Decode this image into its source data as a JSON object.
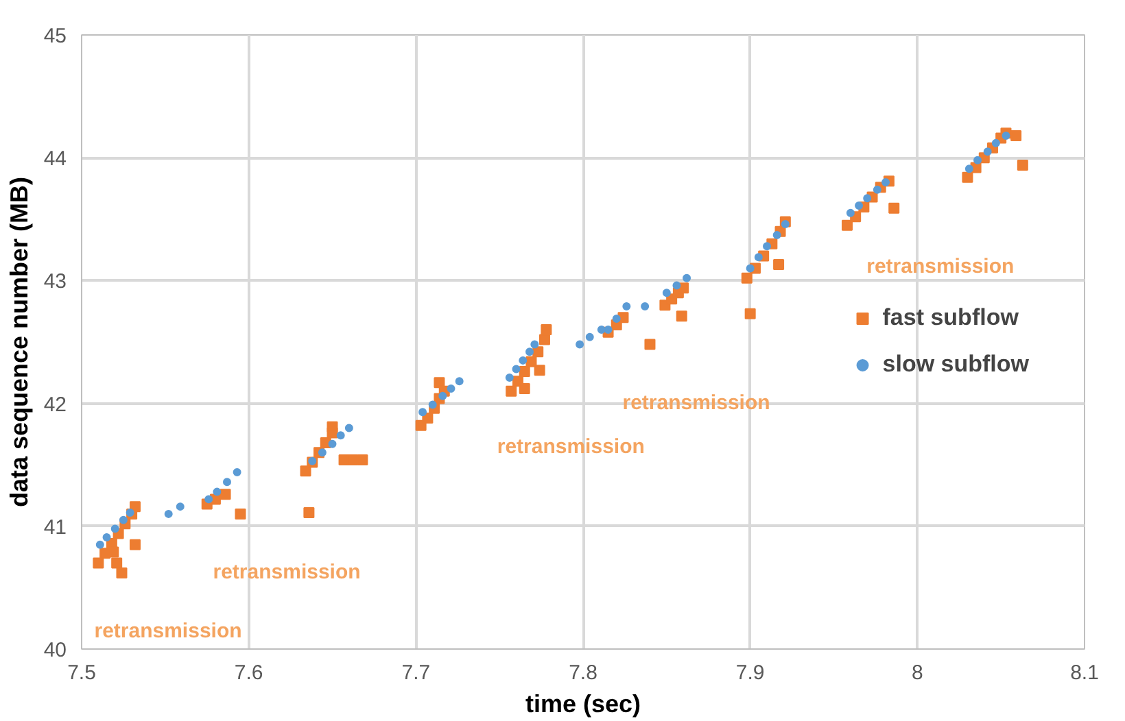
{
  "chart_data": {
    "type": "scatter",
    "xlabel": "time (sec)",
    "ylabel": "data sequence number (MB)",
    "xlim": [
      7.5,
      8.1
    ],
    "xticks": [
      7.5,
      7.6,
      7.7,
      7.8,
      7.9,
      8,
      8.1
    ],
    "ylim": [
      40,
      45
    ],
    "yticks": [
      40,
      41,
      42,
      43,
      44,
      45
    ],
    "grid": true,
    "legend": "right",
    "series": [
      {
        "name": "fast subflow",
        "color": "#ed7d31",
        "marker": "square",
        "x": [
          7.51,
          7.514,
          7.518,
          7.522,
          7.526,
          7.53,
          7.532,
          7.519,
          7.521,
          7.524,
          7.532,
          7.575,
          7.58,
          7.586,
          7.595,
          7.636,
          7.634,
          7.638,
          7.642,
          7.646,
          7.65,
          7.65,
          7.657,
          7.662,
          7.668,
          7.703,
          7.707,
          7.711,
          7.714,
          7.714,
          7.717,
          7.757,
          7.761,
          7.765,
          7.769,
          7.773,
          7.777,
          7.778,
          7.774,
          7.765,
          7.815,
          7.82,
          7.824,
          7.84,
          7.849,
          7.853,
          7.857,
          7.86,
          7.859,
          7.898,
          7.903,
          7.908,
          7.913,
          7.918,
          7.921,
          7.9,
          7.917,
          7.958,
          7.963,
          7.968,
          7.973,
          7.978,
          7.983,
          7.986,
          8.03,
          8.035,
          8.04,
          8.045,
          8.05,
          8.053,
          8.059,
          8.063
        ],
        "values": [
          40.7,
          40.78,
          40.86,
          40.94,
          41.02,
          41.1,
          41.16,
          40.79,
          40.7,
          40.62,
          40.85,
          41.18,
          41.22,
          41.26,
          41.1,
          41.11,
          41.45,
          41.52,
          41.6,
          41.68,
          41.76,
          41.81,
          41.54,
          41.54,
          41.54,
          41.82,
          41.88,
          41.96,
          42.04,
          42.17,
          42.1,
          42.1,
          42.18,
          42.26,
          42.34,
          42.42,
          42.52,
          42.6,
          42.27,
          42.12,
          42.58,
          42.64,
          42.7,
          42.48,
          42.8,
          42.85,
          42.9,
          42.94,
          42.71,
          43.02,
          43.1,
          43.2,
          43.3,
          43.4,
          43.48,
          42.73,
          43.13,
          43.45,
          43.52,
          43.6,
          43.68,
          43.76,
          43.81,
          43.59,
          43.84,
          43.92,
          44.0,
          44.08,
          44.16,
          44.2,
          44.18,
          43.94
        ]
      },
      {
        "name": "slow subflow",
        "color": "#5b9bd5",
        "marker": "circle",
        "x": [
          7.511,
          7.515,
          7.52,
          7.525,
          7.529,
          7.552,
          7.559,
          7.576,
          7.581,
          7.587,
          7.593,
          7.638,
          7.644,
          7.65,
          7.655,
          7.66,
          7.704,
          7.71,
          7.716,
          7.721,
          7.726,
          7.756,
          7.76,
          7.764,
          7.768,
          7.771,
          7.798,
          7.804,
          7.811,
          7.815,
          7.82,
          7.826,
          7.837,
          7.85,
          7.856,
          7.862,
          7.9,
          7.905,
          7.91,
          7.916,
          7.921,
          7.96,
          7.965,
          7.97,
          7.976,
          7.981,
          8.031,
          8.036,
          8.042,
          8.047,
          8.053
        ],
        "values": [
          40.85,
          40.91,
          40.98,
          41.05,
          41.11,
          41.1,
          41.16,
          41.22,
          41.28,
          41.36,
          41.44,
          41.53,
          41.6,
          41.67,
          41.74,
          41.8,
          41.93,
          41.99,
          42.06,
          42.12,
          42.18,
          42.21,
          42.28,
          42.35,
          42.42,
          42.48,
          42.48,
          42.54,
          42.6,
          42.6,
          42.69,
          42.79,
          42.79,
          42.9,
          42.96,
          43.02,
          43.1,
          43.19,
          43.28,
          43.37,
          43.46,
          43.55,
          43.61,
          43.67,
          43.74,
          43.8,
          43.91,
          43.98,
          44.05,
          44.12,
          44.18
        ]
      }
    ],
    "annotations": [
      {
        "text": "retransmission",
        "x": 7.524,
        "y": 40.62
      },
      {
        "text": "retransmission",
        "x": 7.595,
        "y": 41.1
      },
      {
        "text": "retransmission",
        "x": 7.765,
        "y": 42.12
      },
      {
        "text": "retransmission",
        "x": 7.84,
        "y": 42.48
      },
      {
        "text": "retransmission",
        "x": 7.986,
        "y": 43.59
      }
    ]
  }
}
